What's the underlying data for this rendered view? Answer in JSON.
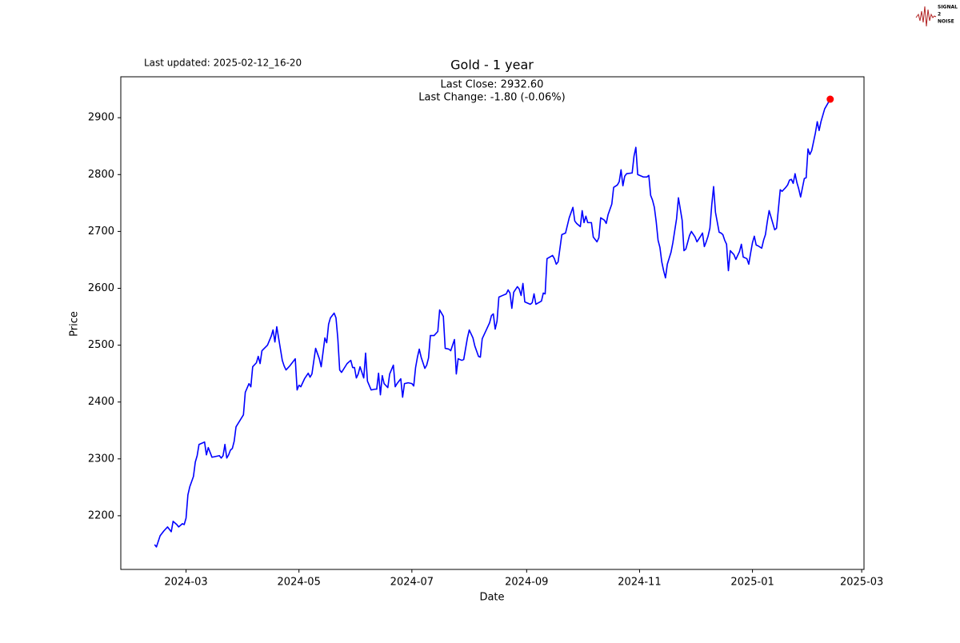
{
  "chart_data": {
    "type": "line",
    "title": "Gold - 1 year",
    "subtitle": "Last updated: 2025-02-12_16-20",
    "annotations": [
      "Last Close: 2932.60",
      "Last Change: -1.80 (-0.06%)"
    ],
    "x_label": "Date",
    "y_label": "Price",
    "color": "#0000ff",
    "last_point_color": "#ff0000",
    "x": [
      19766,
      19767,
      19769,
      19771,
      19773,
      19775,
      19776,
      19778,
      19779,
      19781,
      19782,
      19783,
      19784,
      19785,
      19787,
      19788,
      19789,
      19790,
      19792,
      19793,
      19794,
      19795,
      19797,
      19799,
      19801,
      19802,
      19803,
      19804,
      19805,
      19806,
      19807,
      19808,
      19809,
      19810,
      19814,
      19815,
      19817,
      19818,
      19819,
      19821,
      19822,
      19823,
      19824,
      19827,
      19829,
      19830,
      19831,
      19832,
      19835,
      19836,
      19837,
      19839,
      19842,
      19843,
      19844,
      19845,
      19847,
      19849,
      19850,
      19851,
      19853,
      19855,
      19856,
      19858,
      19859,
      19860,
      19861,
      19863,
      19864,
      19865,
      19866,
      19867,
      19870,
      19872,
      19873,
      19874,
      19875,
      19876,
      19877,
      19879,
      19880,
      19881,
      19883,
      19885,
      19886,
      19887,
      19888,
      19889,
      19890,
      19892,
      19893,
      19895,
      19896,
      19897,
      19899,
      19900,
      19901,
      19903,
      19905,
      19906,
      19907,
      19908,
      19909,
      19910,
      19912,
      19913,
      19914,
      19915,
      19917,
      19919,
      19920,
      19922,
      19923,
      19925,
      19926,
      19928,
      19929,
      19930,
      19932,
      19933,
      19935,
      19936,
      19938,
      19939,
      19941,
      19942,
      19943,
      19945,
      19947,
      19948,
      19949,
      19950,
      19951,
      19952,
      19954,
      19956,
      19957,
      19958,
      19959,
      19960,
      19962,
      19963,
      19964,
      19965,
      19966,
      19969,
      19970,
      19971,
      19972,
      19975,
      19976,
      19977,
      19978,
      19981,
      19982,
      19983,
      19984,
      19986,
      19987,
      19988,
      19990,
      19992,
      19993,
      19994,
      19996,
      19997,
      19998,
      19999,
      20000,
      20002,
      20003,
      20005,
      20006,
      20007,
      20009,
      20010,
      20011,
      20013,
      20014,
      20016,
      20017,
      20018,
      20019,
      20020,
      20021,
      20024,
      20025,
      20026,
      20027,
      20030,
      20032,
      20033,
      20034,
      20035,
      20036,
      20037,
      20038,
      20039,
      20040,
      20041,
      20042,
      20043,
      20045,
      20046,
      20048,
      20049,
      20051,
      20052,
      20053,
      20055,
      20056,
      20058,
      20059,
      20061,
      20062,
      20063,
      20064,
      20065,
      20066,
      20067,
      20068,
      20069,
      20071,
      20072,
      20073,
      20074,
      20075,
      20076,
      20077,
      20079,
      20080,
      20082,
      20083,
      20084,
      20086,
      20087,
      20088,
      20089,
      20090,
      20091,
      20092,
      20094,
      20095,
      20096,
      20097,
      20098,
      20099,
      20101,
      20102,
      20103,
      20104,
      20105,
      20107,
      20108,
      20109,
      20110,
      20111,
      20112,
      20113,
      20114,
      20115,
      20117,
      20118,
      20119,
      20120,
      20121,
      20122,
      20123,
      20124,
      20125,
      20126,
      20128,
      20131
    ],
    "values": [
      2149.3,
      2145.1,
      2164.8,
      2173.3,
      2180.3,
      2171.9,
      2190.2,
      2184.5,
      2180.3,
      2186.0,
      2184.5,
      2195.8,
      2236.6,
      2250.8,
      2269.1,
      2294.4,
      2305.7,
      2325.4,
      2328.2,
      2329.6,
      2307.1,
      2319.8,
      2302.9,
      2304.3,
      2305.7,
      2301.5,
      2305.7,
      2325.4,
      2301.5,
      2307.1,
      2315.5,
      2318.3,
      2331.0,
      2356.4,
      2377.5,
      2417.1,
      2432.4,
      2426.8,
      2462.0,
      2469.0,
      2480.3,
      2467.6,
      2490.2,
      2500.0,
      2515.6,
      2526.8,
      2505.6,
      2532.4,
      2473.3,
      2463.4,
      2456.4,
      2463.4,
      2476.1,
      2421.2,
      2429.6,
      2426.8,
      2440.9,
      2450.7,
      2443.7,
      2449.3,
      2494.4,
      2476.1,
      2462.0,
      2512.7,
      2504.3,
      2536.7,
      2548.0,
      2556.4,
      2548.0,
      2511.3,
      2456.4,
      2452.1,
      2467.6,
      2473.3,
      2460.6,
      2460.6,
      2442.3,
      2449.3,
      2462.0,
      2442.3,
      2485.9,
      2436.7,
      2421.2,
      2422.6,
      2422.6,
      2450.7,
      2412.7,
      2446.5,
      2432.4,
      2425.4,
      2449.3,
      2464.8,
      2426.8,
      2432.4,
      2440.9,
      2408.5,
      2432.4,
      2433.8,
      2432.4,
      2428.2,
      2460.6,
      2478.9,
      2493.0,
      2478.9,
      2459.2,
      2464.8,
      2477.5,
      2516.9,
      2516.9,
      2524.0,
      2562.0,
      2550.7,
      2494.4,
      2493.0,
      2490.2,
      2509.9,
      2449.3,
      2476.1,
      2473.3,
      2474.7,
      2512.7,
      2526.8,
      2512.7,
      2498.6,
      2480.3,
      2478.9,
      2511.3,
      2525.4,
      2539.5,
      2552.1,
      2555.0,
      2528.2,
      2542.3,
      2584.5,
      2587.4,
      2590.2,
      2597.2,
      2591.6,
      2564.8,
      2593.0,
      2602.9,
      2598.7,
      2587.4,
      2608.5,
      2576.1,
      2571.9,
      2574.7,
      2590.2,
      2571.9,
      2577.5,
      2591.6,
      2590.2,
      2652.1,
      2657.8,
      2652.1,
      2642.3,
      2646.5,
      2694.4,
      2695.8,
      2697.2,
      2724.0,
      2742.3,
      2718.4,
      2714.1,
      2708.5,
      2736.6,
      2715.5,
      2726.8,
      2715.5,
      2715.5,
      2690.2,
      2681.7,
      2688.8,
      2724.0,
      2719.8,
      2714.1,
      2729.6,
      2748.0,
      2777.5,
      2781.7,
      2787.4,
      2808.4,
      2780.3,
      2797.2,
      2801.5,
      2802.9,
      2832.4,
      2847.9,
      2800.0,
      2795.8,
      2795.8,
      2798.6,
      2763.4,
      2755.0,
      2742.3,
      2716.9,
      2684.5,
      2671.9,
      2646.5,
      2631.0,
      2618.3,
      2642.3,
      2663.4,
      2680.3,
      2722.6,
      2759.2,
      2719.8,
      2666.2,
      2669.0,
      2693.0,
      2700.0,
      2690.2,
      2681.7,
      2691.6,
      2697.2,
      2673.3,
      2681.7,
      2691.6,
      2705.7,
      2746.5,
      2778.9,
      2733.8,
      2698.6,
      2697.2,
      2694.4,
      2684.5,
      2677.5,
      2631.0,
      2666.2,
      2659.2,
      2650.8,
      2664.8,
      2677.5,
      2655.0,
      2652.1,
      2642.3,
      2662.0,
      2680.3,
      2691.6,
      2676.1,
      2674.7,
      2670.5,
      2684.5,
      2694.4,
      2716.9,
      2736.6,
      2725.4,
      2702.9,
      2705.7,
      2739.5,
      2773.3,
      2770.5,
      2777.5,
      2781.7,
      2790.2,
      2791.6,
      2784.6,
      2801.5,
      2786.0,
      2774.7,
      2760.6,
      2793.0,
      2794.4,
      2845.1,
      2835.3,
      2842.3,
      2857.8,
      2873.3,
      2893.0,
      2877.5,
      2893.0,
      2915.5,
      2932.6
    ],
    "xlim": [
      19747.75,
      20149.25
    ],
    "xticks": [
      {
        "value": 19783,
        "label": "2024-03"
      },
      {
        "value": 19844,
        "label": "2024-05"
      },
      {
        "value": 19905,
        "label": "2024-07"
      },
      {
        "value": 19967,
        "label": "2024-09"
      },
      {
        "value": 20028,
        "label": "2024-11"
      },
      {
        "value": 20089,
        "label": "2025-01"
      },
      {
        "value": 20148,
        "label": "2025-03"
      }
    ],
    "ylim": [
      2105.6,
      2972.0
    ],
    "yticks": [
      2200,
      2300,
      2400,
      2500,
      2600,
      2700,
      2800,
      2900
    ],
    "grid": false
  },
  "logo": {
    "lines": [
      "SIGNAL",
      "2",
      "NOISE"
    ]
  }
}
